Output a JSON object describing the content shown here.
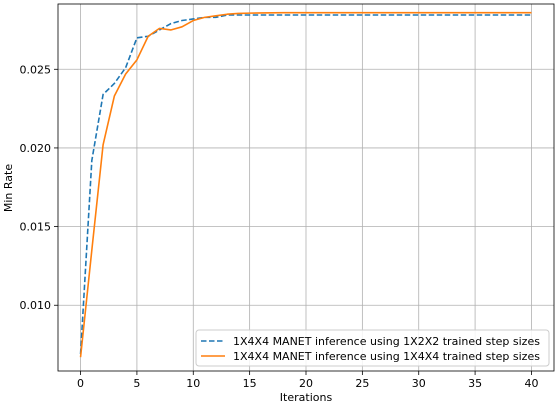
{
  "chart_data": {
    "type": "line",
    "title": "",
    "xlabel": "Iterations",
    "ylabel": "Min Rate",
    "xlim": [
      -2,
      42
    ],
    "ylim": [
      0.00582,
      0.02915
    ],
    "xticks": [
      0,
      5,
      10,
      15,
      20,
      25,
      30,
      35,
      40
    ],
    "yticks": [
      0.01,
      0.015,
      0.02,
      0.025
    ],
    "xtick_labels": [
      "0",
      "5",
      "10",
      "15",
      "20",
      "25",
      "30",
      "35",
      "40"
    ],
    "ytick_labels": [
      "0.010",
      "0.015",
      "0.020",
      "0.025"
    ],
    "grid": true,
    "legend_position": "lower-right",
    "series": [
      {
        "name": "1X4X4 MANET inference using 1X2X2 trained step sizes",
        "color": "#1f77b4",
        "style": "dashed",
        "x": [
          0,
          1,
          2,
          3,
          4,
          5,
          6,
          7,
          8,
          9,
          10,
          11,
          12,
          13,
          14,
          15,
          16,
          17,
          18,
          19,
          20,
          21,
          22,
          23,
          24,
          25,
          26,
          27,
          28,
          29,
          30,
          31,
          32,
          33,
          34,
          35,
          36,
          37,
          38,
          39,
          40
        ],
        "y": [
          0.0069,
          0.0192,
          0.0234,
          0.0241,
          0.0251,
          0.027,
          0.0271,
          0.0275,
          0.0279,
          0.0281,
          0.0282,
          0.0283,
          0.0283,
          0.02845,
          0.02845,
          0.02845,
          0.02845,
          0.02845,
          0.02845,
          0.02845,
          0.02845,
          0.02845,
          0.02845,
          0.02845,
          0.02845,
          0.02845,
          0.02845,
          0.02845,
          0.02845,
          0.02845,
          0.02845,
          0.02845,
          0.02845,
          0.02845,
          0.02845,
          0.02845,
          0.02845,
          0.02845,
          0.02845,
          0.02845,
          0.02845
        ]
      },
      {
        "name": "1X4X4 MANET inference using 1X4X4 trained step sizes",
        "color": "#ff7f0e",
        "style": "solid",
        "x": [
          0,
          1,
          2,
          3,
          4,
          5,
          6,
          7,
          8,
          9,
          10,
          11,
          12,
          13,
          14,
          15,
          16,
          17,
          18,
          19,
          20,
          21,
          22,
          23,
          24,
          25,
          26,
          27,
          28,
          29,
          30,
          31,
          32,
          33,
          34,
          35,
          36,
          37,
          38,
          39,
          40
        ],
        "y": [
          0.0067,
          0.0135,
          0.0202,
          0.0233,
          0.0247,
          0.0256,
          0.0271,
          0.0276,
          0.0275,
          0.0277,
          0.0281,
          0.0283,
          0.0284,
          0.0285,
          0.02855,
          0.02857,
          0.02858,
          0.02859,
          0.0286,
          0.0286,
          0.0286,
          0.0286,
          0.0286,
          0.0286,
          0.0286,
          0.0286,
          0.0286,
          0.0286,
          0.0286,
          0.0286,
          0.0286,
          0.0286,
          0.0286,
          0.0286,
          0.0286,
          0.0286,
          0.0286,
          0.0286,
          0.0286,
          0.0286,
          0.0286
        ]
      }
    ]
  }
}
